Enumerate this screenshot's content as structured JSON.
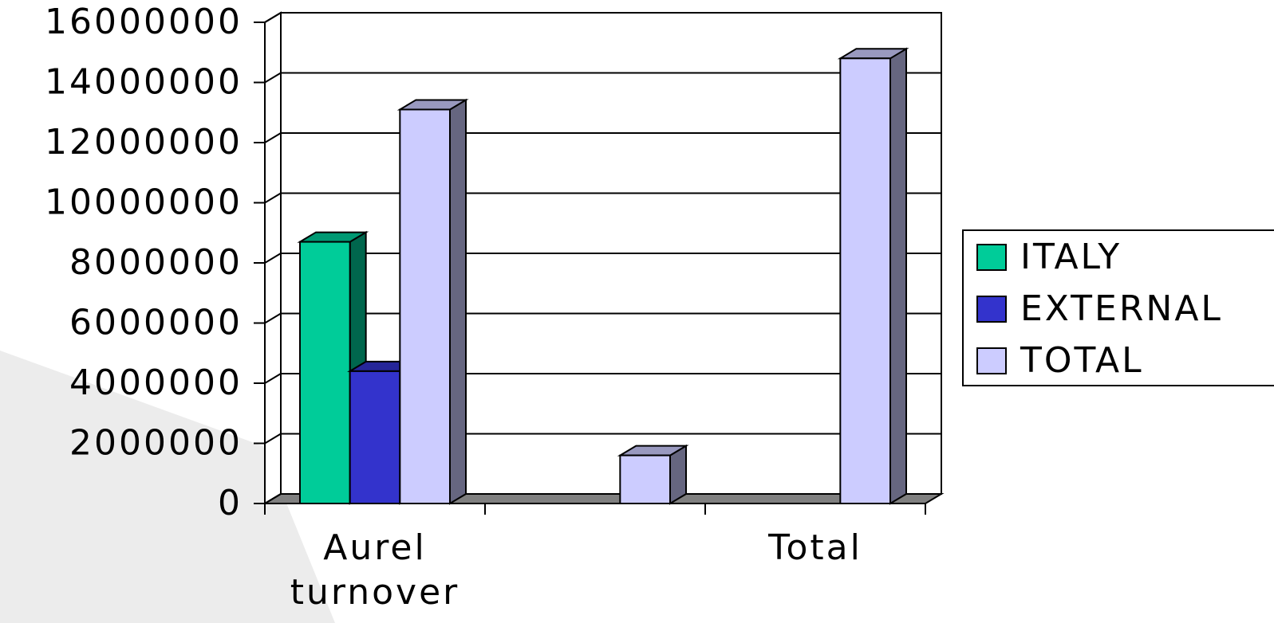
{
  "chart_data": {
    "type": "bar3d",
    "categories": [
      "Aurel turnover",
      null,
      "Total"
    ],
    "series": [
      {
        "name": "ITALY",
        "color": "#00cc99",
        "values": [
          8700000,
          null,
          null
        ]
      },
      {
        "name": "EXTERNAL",
        "color": "#3333cc",
        "values": [
          4400000,
          null,
          null
        ]
      },
      {
        "name": "TOTAL",
        "color": "#ccccff",
        "values": [
          13100000,
          1600000,
          14800000
        ]
      }
    ],
    "ylim": [
      0,
      16000000
    ],
    "yticks": [
      0,
      2000000,
      4000000,
      6000000,
      8000000,
      10000000,
      12000000,
      14000000,
      16000000
    ],
    "grid": true,
    "legend": "right"
  }
}
